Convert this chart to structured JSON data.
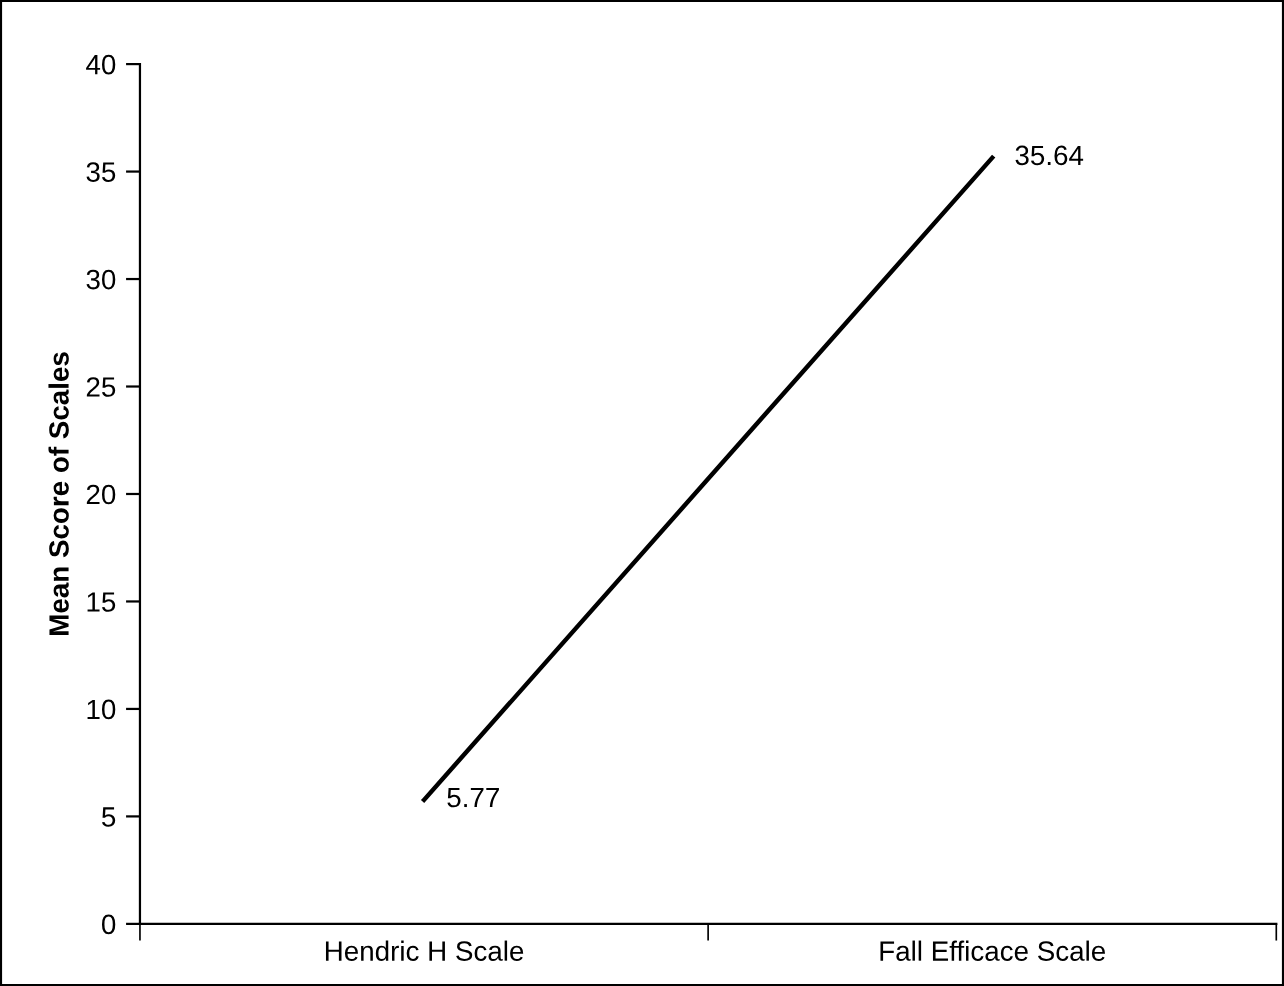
{
  "chart_data": {
    "type": "line",
    "ylabel": "Mean Score of Scales",
    "categories": [
      "Hendric H Scale",
      "Fall Efficace Scale"
    ],
    "series": [
      {
        "color": "#000000",
        "values": [
          5.77,
          35.64
        ]
      }
    ],
    "ylim": [
      0,
      40
    ],
    "yticks": [
      0,
      5,
      10,
      15,
      20,
      25,
      30,
      35,
      40
    ],
    "data_labels": true,
    "grid": false,
    "legend": false,
    "marker": "none",
    "line_style": "solid"
  }
}
